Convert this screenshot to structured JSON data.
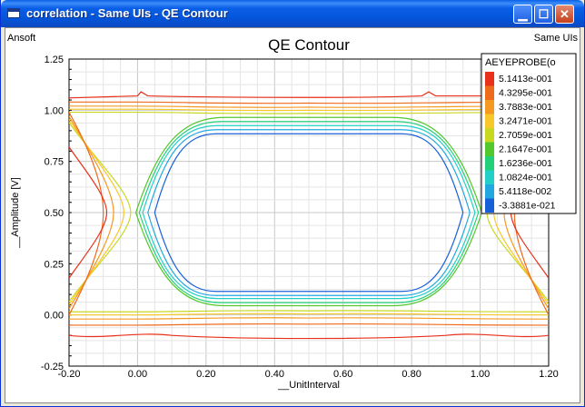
{
  "window": {
    "title": "correlation - Same UIs - QE Contour",
    "minimize_icon": "minimize-icon",
    "maximize_icon": "maximize-icon",
    "close_icon": "close-icon"
  },
  "plot": {
    "vendor_label": "Ansoft",
    "right_label": "Same UIs",
    "title": "QE Contour"
  },
  "chart_data": {
    "type": "contour",
    "title": "QE Contour",
    "xlabel": "__UnitInterval",
    "ylabel": "__Amplitude [V]",
    "xlim": [
      -0.2,
      1.2
    ],
    "ylim": [
      -0.25,
      1.25
    ],
    "x_ticks": [
      "-0.20",
      "0.00",
      "0.20",
      "0.40",
      "0.60",
      "0.80",
      "1.00",
      "1.20"
    ],
    "y_ticks": [
      "-0.25",
      "0.00",
      "0.25",
      "0.50",
      "0.75",
      "1.00",
      "1.25"
    ],
    "grid": true,
    "legend": {
      "title": "AEYEPROBE(o",
      "placement": "top-right",
      "levels": [
        "5.1413e-001",
        "4.3295e-001",
        "3.7883e-001",
        "3.2471e-001",
        "2.7059e-001",
        "2.1647e-001",
        "1.6236e-001",
        "1.0824e-001",
        "5.4118e-002",
        "-3.3881e-021"
      ],
      "colors": [
        "#e8301a",
        "#ee6a1c",
        "#f49a22",
        "#f8c82a",
        "#c8d820",
        "#52c82c",
        "#22d07a",
        "#22d0c8",
        "#22a8e0",
        "#1860d8"
      ]
    },
    "eye": {
      "center_x": 0.5,
      "center_y": 0.5,
      "crossing_left_x": 0.0,
      "crossing_right_x": 1.0,
      "inner_half_width": 0.45,
      "inner_top": 0.88,
      "inner_bottom": 0.11
    }
  }
}
